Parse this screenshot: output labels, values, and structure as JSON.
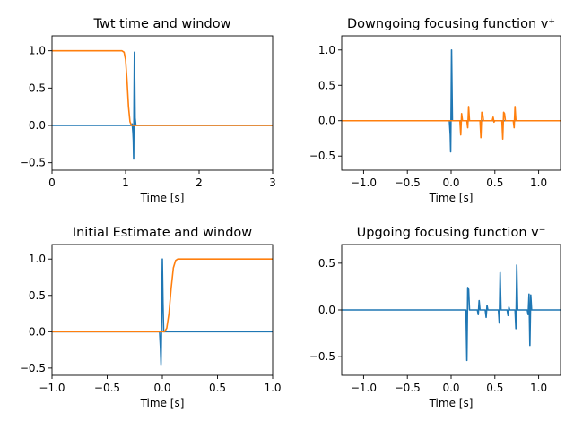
{
  "chart_data": [
    {
      "type": "line",
      "title": "Twt time and window",
      "xlabel": "Time [s]",
      "ylabel": "",
      "xlim": [
        0,
        3
      ],
      "ylim": [
        -0.6,
        1.2
      ],
      "xticks": [
        0,
        1,
        2,
        3
      ],
      "xticklabels": [
        "0",
        "1",
        "2",
        "3"
      ],
      "yticks": [
        -0.5,
        0.0,
        0.5,
        1.0
      ],
      "yticklabels": [
        "−0.5",
        "0.0",
        "0.5",
        "1.0"
      ],
      "series": [
        {
          "color": "#1f77b4",
          "points": [
            [
              0,
              0
            ],
            [
              1.08,
              0
            ],
            [
              1.09,
              0.02
            ],
            [
              1.1,
              -0.1
            ],
            [
              1.105,
              -0.2
            ],
            [
              1.11,
              -0.45
            ],
            [
              1.115,
              0.35
            ],
            [
              1.12,
              0.98
            ],
            [
              1.125,
              0.6
            ],
            [
              1.13,
              0.1
            ],
            [
              1.14,
              0
            ],
            [
              3,
              0
            ]
          ]
        },
        {
          "color": "#ff7f0e",
          "points": [
            [
              0,
              1.0
            ],
            [
              0.95,
              1.0
            ],
            [
              0.98,
              0.98
            ],
            [
              1.0,
              0.88
            ],
            [
              1.02,
              0.6
            ],
            [
              1.04,
              0.25
            ],
            [
              1.06,
              0.05
            ],
            [
              1.08,
              0.0
            ],
            [
              3,
              0
            ]
          ]
        }
      ]
    },
    {
      "type": "line",
      "title": "Downgoing focusing function v⁺",
      "xlabel": "Time [s]",
      "ylabel": "",
      "xlim": [
        -1.25,
        1.25
      ],
      "ylim": [
        -0.7,
        1.2
      ],
      "xticks": [
        -1.0,
        -0.5,
        0.0,
        0.5,
        1.0
      ],
      "xticklabels": [
        "−1.0",
        "−0.5",
        "0.0",
        "0.5",
        "1.0"
      ],
      "yticks": [
        -0.5,
        0.0,
        0.5,
        1.0
      ],
      "yticklabels": [
        "−0.5",
        "0.0",
        "0.5",
        "1.0"
      ],
      "series": [
        {
          "color": "#1f77b4",
          "points": [
            [
              -1.25,
              0
            ],
            [
              -0.02,
              0
            ],
            [
              -0.01,
              -0.2
            ],
            [
              -0.005,
              -0.44
            ],
            [
              0.0,
              0.2
            ],
            [
              0.005,
              1.0
            ],
            [
              0.01,
              0.5
            ],
            [
              0.015,
              0
            ],
            [
              1.25,
              0
            ]
          ]
        },
        {
          "color": "#ff7f0e",
          "points": [
            [
              -1.25,
              0
            ],
            [
              0.1,
              0
            ],
            [
              0.11,
              -0.2
            ],
            [
              0.12,
              0.1
            ],
            [
              0.13,
              0
            ],
            [
              0.18,
              0
            ],
            [
              0.19,
              -0.1
            ],
            [
              0.2,
              0.2
            ],
            [
              0.21,
              0
            ],
            [
              0.33,
              0
            ],
            [
              0.34,
              -0.24
            ],
            [
              0.35,
              0.12
            ],
            [
              0.36,
              0.1
            ],
            [
              0.37,
              0
            ],
            [
              0.47,
              0
            ],
            [
              0.48,
              0.05
            ],
            [
              0.49,
              -0.02
            ],
            [
              0.5,
              0
            ],
            [
              0.58,
              0
            ],
            [
              0.59,
              -0.26
            ],
            [
              0.6,
              0.12
            ],
            [
              0.61,
              0.1
            ],
            [
              0.62,
              0
            ],
            [
              0.71,
              0
            ],
            [
              0.72,
              -0.1
            ],
            [
              0.73,
              0.2
            ],
            [
              0.74,
              0
            ],
            [
              1.25,
              0
            ]
          ]
        }
      ]
    },
    {
      "type": "line",
      "title": "Initial Estimate and window",
      "xlabel": "Time [s]",
      "ylabel": "",
      "xlim": [
        -1.0,
        1.0
      ],
      "ylim": [
        -0.6,
        1.2
      ],
      "xticks": [
        -1.0,
        -0.5,
        0.0,
        0.5,
        1.0
      ],
      "xticklabels": [
        "−1.0",
        "−0.5",
        "0.0",
        "0.5",
        "1.0"
      ],
      "yticks": [
        -0.5,
        0.0,
        0.5,
        1.0
      ],
      "yticklabels": [
        "−0.5",
        "0.0",
        "0.5",
        "1.0"
      ],
      "series": [
        {
          "color": "#1f77b4",
          "points": [
            [
              -1.0,
              0
            ],
            [
              -0.025,
              0
            ],
            [
              -0.018,
              -0.2
            ],
            [
              -0.012,
              -0.45
            ],
            [
              -0.006,
              0.2
            ],
            [
              0.0,
              1.0
            ],
            [
              0.006,
              0.4
            ],
            [
              0.012,
              0
            ],
            [
              1.0,
              0
            ]
          ]
        },
        {
          "color": "#ff7f0e",
          "points": [
            [
              -1.0,
              0
            ],
            [
              0.02,
              0
            ],
            [
              0.04,
              0.05
            ],
            [
              0.06,
              0.25
            ],
            [
              0.08,
              0.6
            ],
            [
              0.1,
              0.88
            ],
            [
              0.12,
              0.98
            ],
            [
              0.14,
              1.0
            ],
            [
              1.0,
              1.0
            ]
          ]
        }
      ]
    },
    {
      "type": "line",
      "title": "Upgoing focusing function v⁻",
      "xlabel": "Time [s]",
      "ylabel": "",
      "xlim": [
        -1.25,
        1.25
      ],
      "ylim": [
        -0.7,
        0.7
      ],
      "xticks": [
        -1.0,
        -0.5,
        0.0,
        0.5,
        1.0
      ],
      "xticklabels": [
        "−1.0",
        "−0.5",
        "0.0",
        "0.5",
        "1.0"
      ],
      "yticks": [
        -0.5,
        0.0,
        0.5
      ],
      "yticklabels": [
        "−0.5",
        "0.0",
        "0.5"
      ],
      "series": [
        {
          "color": "#1f77b4",
          "points": [
            [
              -1.25,
              0
            ],
            [
              0.17,
              0
            ],
            [
              0.18,
              -0.54
            ],
            [
              0.19,
              0.24
            ],
            [
              0.2,
              0.22
            ],
            [
              0.21,
              0
            ],
            [
              0.3,
              0
            ],
            [
              0.31,
              -0.05
            ],
            [
              0.32,
              0.1
            ],
            [
              0.33,
              0
            ],
            [
              0.39,
              0
            ],
            [
              0.4,
              -0.08
            ],
            [
              0.41,
              0.05
            ],
            [
              0.42,
              0
            ],
            [
              0.54,
              0
            ],
            [
              0.55,
              -0.14
            ],
            [
              0.56,
              0.4
            ],
            [
              0.57,
              0
            ],
            [
              0.64,
              0
            ],
            [
              0.65,
              -0.06
            ],
            [
              0.66,
              0.03
            ],
            [
              0.67,
              0
            ],
            [
              0.73,
              0
            ],
            [
              0.74,
              -0.2
            ],
            [
              0.75,
              0.48
            ],
            [
              0.76,
              0
            ],
            [
              0.87,
              0
            ],
            [
              0.88,
              -0.05
            ],
            [
              0.89,
              0.17
            ],
            [
              0.9,
              -0.38
            ],
            [
              0.91,
              0.16
            ],
            [
              0.92,
              0
            ],
            [
              1.25,
              0
            ]
          ]
        }
      ]
    }
  ]
}
